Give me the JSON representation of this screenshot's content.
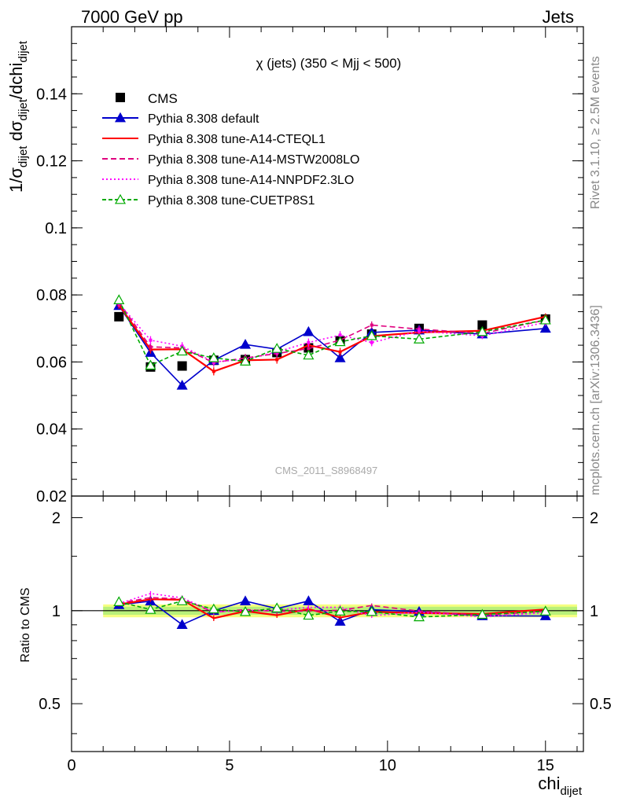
{
  "header": {
    "left": "7000 GeV pp",
    "right": "Jets"
  },
  "side_text": {
    "rivet": "Rivet 3.1.10, ≥ 2.5M events",
    "mcplots": "mcplots.cern.ch [arXiv:1306.3436]"
  },
  "watermark": "CMS_2011_S8968497",
  "chart_data": {
    "type": "line",
    "title": "χ (jets) (350 < Mjj <  500)",
    "ylabel_main": "1/σdijet dσdijet/dchidijet",
    "ylabel_ratio": "Ratio to CMS",
    "xlabel": "chidijet",
    "xlim": [
      0,
      16.2
    ],
    "ylim_main": [
      0.02,
      0.16
    ],
    "ylim_ratio": [
      0.35,
      2.35
    ],
    "ratio_log_scale": true,
    "x_ticks": [
      "0",
      "5",
      "10",
      "15"
    ],
    "y_ticks_main": [
      "0.02",
      "0.04",
      "0.06",
      "0.08",
      "0.1",
      "0.12",
      "0.14"
    ],
    "y_ticks_ratio": [
      "0.5",
      "1",
      "2"
    ],
    "x": [
      1.5,
      2.5,
      3.5,
      4.5,
      5.5,
      6.5,
      7.5,
      8.5,
      9.5,
      11,
      13,
      15
    ],
    "x_edges": [
      1,
      2,
      3,
      4,
      5,
      6,
      7,
      8,
      9,
      10,
      12,
      14,
      16
    ],
    "reference": {
      "name": "CMS",
      "values": [
        0.0735,
        0.0585,
        0.0588,
        0.0605,
        0.0607,
        0.0628,
        0.0642,
        0.0663,
        0.0683,
        0.07,
        0.071,
        0.0728
      ],
      "band_fraction": 0.03
    },
    "series": [
      {
        "name": "Pythia 8.308 default",
        "color": "#0000cc",
        "dash": "",
        "marker": "triangle-filled",
        "values": [
          0.0768,
          0.0628,
          0.053,
          0.0605,
          0.0652,
          0.0638,
          0.069,
          0.0612,
          0.0688,
          0.0695,
          0.0683,
          0.07
        ],
        "errors": [
          0.0012,
          0.0011,
          0.0012,
          0.0011,
          0.0012,
          0.0012,
          0.0012,
          0.0012,
          0.0011,
          0.001,
          0.001,
          0.001
        ]
      },
      {
        "name": "Pythia 8.308 tune-A14-CTEQL1",
        "color": "#ff0000",
        "dash": "",
        "marker": "none",
        "values": [
          0.077,
          0.0637,
          0.0638,
          0.0572,
          0.0605,
          0.0607,
          0.065,
          0.063,
          0.0677,
          0.0688,
          0.0693,
          0.0735
        ],
        "errors": [
          0.0012,
          0.0012,
          0.0012,
          0.0012,
          0.0012,
          0.0012,
          0.0012,
          0.0012,
          0.0011,
          0.001,
          0.001,
          0.001
        ]
      },
      {
        "name": "Pythia 8.308 tune-A14-MSTW2008LO",
        "color": "#e0007f",
        "dash": "7,4",
        "marker": "none",
        "values": [
          0.0778,
          0.0645,
          0.0642,
          0.0598,
          0.0612,
          0.0625,
          0.064,
          0.0665,
          0.071,
          0.0698,
          0.0685,
          0.0725
        ],
        "errors": [
          0.0012,
          0.0012,
          0.0012,
          0.0012,
          0.0012,
          0.0012,
          0.0012,
          0.0012,
          0.0011,
          0.001,
          0.001,
          0.001
        ]
      },
      {
        "name": "Pythia 8.308 tune-A14-NNPDF2.3LO",
        "color": "#ff00ff",
        "dash": "2,3",
        "marker": "none",
        "values": [
          0.0775,
          0.0665,
          0.0647,
          0.06,
          0.0608,
          0.063,
          0.0658,
          0.068,
          0.0658,
          0.0692,
          0.0678,
          0.0718
        ],
        "errors": [
          0.0012,
          0.0012,
          0.0012,
          0.0012,
          0.0012,
          0.0012,
          0.0012,
          0.0012,
          0.0011,
          0.001,
          0.001,
          0.001
        ]
      },
      {
        "name": "Pythia 8.308 tune-CUETP8S1",
        "color": "#00aa00",
        "dash": "5,3",
        "marker": "triangle-open",
        "values": [
          0.0785,
          0.059,
          0.0632,
          0.0612,
          0.0602,
          0.064,
          0.062,
          0.066,
          0.0678,
          0.0668,
          0.069,
          0.0725
        ],
        "errors": [
          0.0012,
          0.0012,
          0.0012,
          0.0012,
          0.0012,
          0.0012,
          0.0012,
          0.0012,
          0.0011,
          0.001,
          0.001,
          0.001
        ]
      }
    ]
  }
}
